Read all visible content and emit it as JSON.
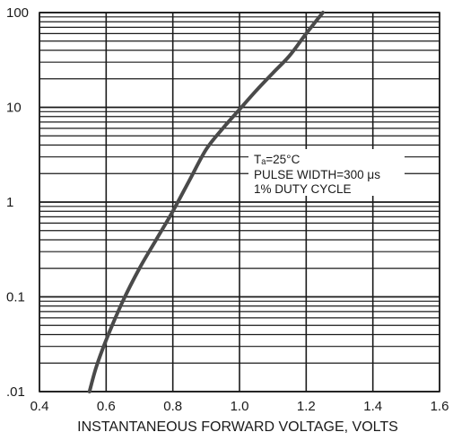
{
  "chart_data": {
    "type": "line",
    "xlabel": "INSTANTANEOUS FORWARD VOLTAGE, VOLTS",
    "ylabel": "",
    "x_scale": "linear",
    "y_scale": "log",
    "xlim": [
      0.4,
      1.6
    ],
    "ylim": [
      0.01,
      100
    ],
    "x_ticks": [
      0.4,
      0.6,
      0.8,
      1.0,
      1.2,
      1.4,
      1.6
    ],
    "x_tick_labels": [
      "0.4",
      "0.6",
      "0.8",
      "1.0",
      "1.2",
      "1.4",
      "1.6"
    ],
    "y_ticks": [
      0.01,
      0.1,
      1,
      10,
      100
    ],
    "y_tick_labels": [
      ".01",
      "0.1",
      "1",
      "10",
      "100"
    ],
    "grid": true,
    "grid_minor_y": [
      2,
      3,
      4,
      5,
      6,
      7,
      8,
      9
    ],
    "series": [
      {
        "x": [
          0.55,
          0.57,
          0.6,
          0.65,
          0.7,
          0.75,
          0.8,
          0.85,
          0.9,
          0.95,
          1.0,
          1.05,
          1.1,
          1.15,
          1.2,
          1.25
        ],
        "y": [
          0.01,
          0.018,
          0.035,
          0.09,
          0.2,
          0.4,
          0.8,
          1.7,
          3.6,
          6.0,
          9.5,
          15,
          23,
          35,
          60,
          100
        ],
        "color": "#4a4a4a"
      }
    ],
    "annotations": [
      "Tₐ=25°C",
      "PULSE WIDTH=300 μs",
      "1% DUTY CYCLE"
    ]
  }
}
